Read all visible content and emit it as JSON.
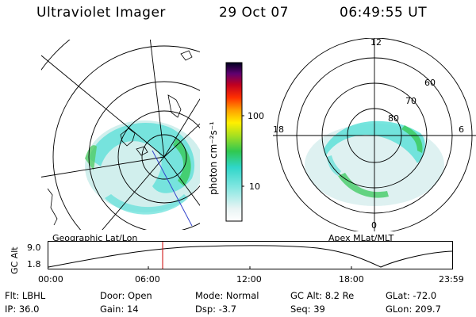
{
  "header": {
    "instrument": "Ultraviolet Imager",
    "date": "29 Oct 07",
    "time": "06:49:55 UT"
  },
  "colorbar": {
    "unit": "photon cm⁻²s⁻¹",
    "ticks": [
      {
        "label": "100",
        "value": 100
      },
      {
        "label": "10",
        "value": 10
      }
    ]
  },
  "geo_panel": {
    "label": "Geographic Lat/Lon"
  },
  "polar_panel": {
    "label": "Apex MLat/MLT",
    "mlt_labels": [
      "12",
      "18",
      "6",
      "0"
    ],
    "lat_labels": [
      "60",
      "70",
      "80"
    ]
  },
  "altitude_plot": {
    "ylabel": "GC Alt",
    "yticks": [
      "9.0",
      "1.8"
    ],
    "xticks": [
      "00:00",
      "06:00",
      "12:00",
      "18:00",
      "23:59"
    ]
  },
  "info": {
    "row1": [
      {
        "key": "Flt:",
        "value": "LBHL"
      },
      {
        "key": "Door:",
        "value": "Open"
      },
      {
        "key": "Mode:",
        "value": "Normal"
      },
      {
        "key": "GC Alt:",
        "value": "8.2 Re"
      },
      {
        "key": "GLat:",
        "value": "-72.0"
      }
    ],
    "row2": [
      {
        "key": "IP:",
        "value": "36.0"
      },
      {
        "key": "Gain:",
        "value": "14"
      },
      {
        "key": "Dsp:",
        "value": "-3.7"
      },
      {
        "key": "Seq:",
        "value": "39"
      },
      {
        "key": "GLon:",
        "value": "209.7"
      }
    ]
  },
  "colors": {
    "cursor": "#cc0000",
    "aurora_cyan": "#5fe0d8",
    "aurora_green": "#44cc44",
    "aurora_pale": "#bfe9e6"
  }
}
